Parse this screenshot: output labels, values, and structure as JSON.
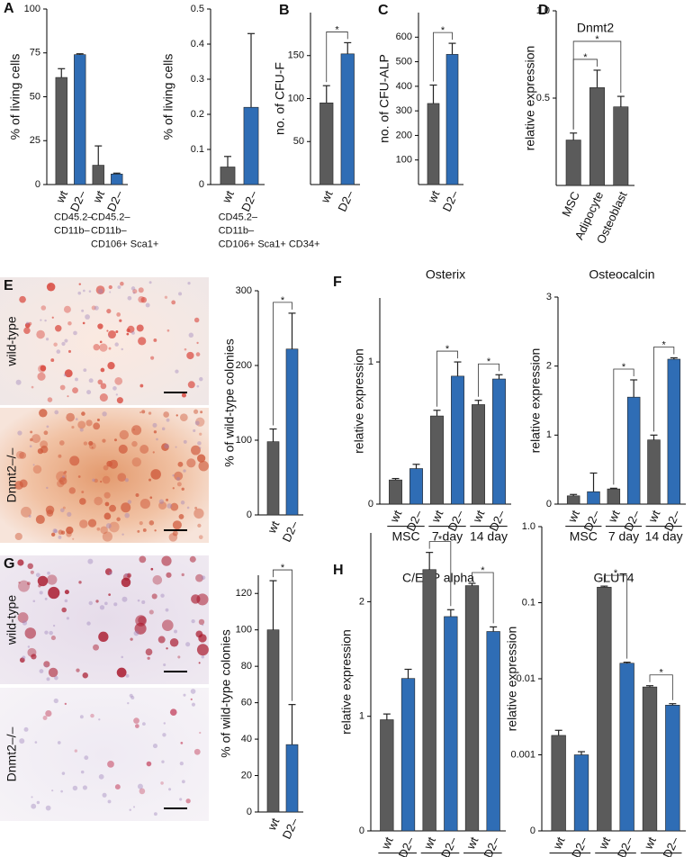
{
  "images": [
    {
      "panel": "E",
      "rows": [
        "wild-type",
        "Dnmt2–/–"
      ]
    },
    {
      "panel": "G",
      "rows": [
        "wild-type",
        "Dnmt2–/–"
      ]
    }
  ],
  "chart_data": [
    {
      "type": "bar",
      "panel": "A",
      "y_label": "% of living cells",
      "categories": [
        "wt",
        "D2–",
        "wt",
        "D2–"
      ],
      "values": [
        61,
        74,
        11,
        6
      ],
      "errors": [
        5,
        0.5,
        11,
        0.5
      ],
      "colors": [
        "#5b5b5b",
        "#2f6db5",
        "#5b5b5b",
        "#2f6db5"
      ],
      "groups": [
        [
          "CD45.2–",
          "CD11b–"
        ],
        [
          "CD45.2–",
          "CD11b–",
          "CD106+ Sca1+"
        ]
      ],
      "ylim": [
        0,
        100
      ],
      "yticks": [
        0,
        25,
        50,
        75,
        100
      ]
    },
    {
      "type": "bar",
      "y_label": "% of living cells",
      "categories": [
        "wt",
        "D2–"
      ],
      "values": [
        0.05,
        0.22
      ],
      "errors": [
        0.03,
        0.21
      ],
      "colors": [
        "#5b5b5b",
        "#2f6db5"
      ],
      "groups": [
        [
          "CD45.2–",
          "CD11b–",
          "CD106+ Sca1+ CD34+"
        ]
      ],
      "ylim": [
        0,
        0.5
      ],
      "yticks": [
        0,
        0.1,
        0.2,
        0.3,
        0.4,
        0.5
      ]
    },
    {
      "type": "bar",
      "panel": "B",
      "y_label": "no. of CFU-F",
      "categories": [
        "wt",
        "D2–"
      ],
      "values": [
        95,
        152
      ],
      "errors": [
        20,
        13
      ],
      "colors": [
        "#5b5b5b",
        "#2f6db5"
      ],
      "ylim": [
        0,
        200
      ],
      "yticks": [
        50,
        100,
        150
      ],
      "brackets": [
        {
          "from": 0,
          "to": 1,
          "label": "*"
        }
      ]
    },
    {
      "type": "bar",
      "panel": "C",
      "y_label": "no. of CFU-ALP",
      "categories": [
        "wt",
        "D2–"
      ],
      "values": [
        330,
        530
      ],
      "errors": [
        75,
        45
      ],
      "colors": [
        "#5b5b5b",
        "#2f6db5"
      ],
      "ylim": [
        0,
        700
      ],
      "yticks": [
        100,
        200,
        300,
        400,
        500,
        600
      ],
      "brackets": [
        {
          "from": 0,
          "to": 1,
          "label": "*"
        }
      ]
    },
    {
      "type": "bar",
      "panel": "D",
      "title": "Dnmt2",
      "y_label": "relative expression",
      "categories": [
        "MSC",
        "Adipocyte",
        "Osteoblast"
      ],
      "values": [
        0.26,
        0.56,
        0.45
      ],
      "errors": [
        0.04,
        0.1,
        0.06
      ],
      "colors": [
        "#5b5b5b",
        "#5b5b5b",
        "#5b5b5b"
      ],
      "ylim": [
        0,
        1
      ],
      "yticks": [
        0.5,
        {
          "value": 1,
          "label": "1.0"
        }
      ],
      "brackets": [
        {
          "from": 0,
          "to": 1,
          "label": "*"
        },
        {
          "from": 0,
          "to": 2,
          "label": "*"
        }
      ]
    },
    {
      "type": "bar",
      "y_label": "% of wild-type colonies",
      "categories": [
        "wt",
        "D2–"
      ],
      "values": [
        98,
        222
      ],
      "errors": [
        17,
        48
      ],
      "colors": [
        "#5b5b5b",
        "#2f6db5"
      ],
      "ylim": [
        0,
        300
      ],
      "yticks": [
        0,
        100,
        200,
        300
      ],
      "brackets": [
        {
          "from": 0,
          "to": 1,
          "label": "*"
        }
      ]
    },
    {
      "type": "bar",
      "panel": "F",
      "title": "Osterix",
      "y_label": "relative expression",
      "categories": [
        "wt",
        "D2–",
        "wt",
        "D2–",
        "wt",
        "D2–"
      ],
      "values": [
        0.17,
        0.25,
        0.62,
        0.9,
        0.7,
        0.88
      ],
      "errors": [
        0.01,
        0.03,
        0.04,
        0.1,
        0.03,
        0.03
      ],
      "colors": [
        "#5b5b5b",
        "#2f6db5",
        "#5b5b5b",
        "#2f6db5",
        "#5b5b5b",
        "#2f6db5"
      ],
      "groups": [
        [
          "MSC"
        ],
        [
          "7 day"
        ],
        [
          "14 day"
        ]
      ],
      "ylim": [
        0,
        1.45
      ],
      "yticks": [
        0,
        1
      ],
      "brackets": [
        {
          "from": 2,
          "to": 3,
          "label": "*"
        },
        {
          "from": 4,
          "to": 5,
          "label": "*"
        }
      ]
    },
    {
      "type": "bar",
      "title": "Osteocalcin",
      "y_label": "relative expression",
      "categories": [
        "wt",
        "D2–",
        "wt",
        "D2–",
        "wt",
        "D2–"
      ],
      "values": [
        0.12,
        0.18,
        0.22,
        1.55,
        0.93,
        2.1
      ],
      "errors": [
        0.02,
        0.27,
        0.01,
        0.25,
        0.07,
        0.02
      ],
      "colors": [
        "#5b5b5b",
        "#2f6db5",
        "#5b5b5b",
        "#2f6db5",
        "#5b5b5b",
        "#2f6db5"
      ],
      "groups": [
        [
          "MSC"
        ],
        [
          "7 day"
        ],
        [
          "14 day"
        ]
      ],
      "ylim": [
        0,
        3
      ],
      "yticks": [
        0,
        1,
        2,
        3
      ],
      "brackets": [
        {
          "from": 2,
          "to": 3,
          "label": "*"
        },
        {
          "from": 4,
          "to": 5,
          "label": "*"
        }
      ]
    },
    {
      "type": "bar",
      "y_label": "% of wild-type colonies",
      "categories": [
        "wt",
        "D2–"
      ],
      "values": [
        100,
        37
      ],
      "errors": [
        27,
        22
      ],
      "colors": [
        "#5b5b5b",
        "#2f6db5"
      ],
      "ylim": [
        0,
        130
      ],
      "yticks": [
        0,
        20,
        40,
        60,
        80,
        100,
        120
      ],
      "brackets": [
        {
          "from": 0,
          "to": 1,
          "label": "*"
        }
      ]
    },
    {
      "type": "bar",
      "panel": "H",
      "title": "C/EBP alpha",
      "y_label": "relative expression",
      "categories": [
        "wt",
        "D2–",
        "wt",
        "D2–",
        "wt",
        "D2–"
      ],
      "values": [
        0.97,
        1.33,
        2.28,
        1.87,
        2.14,
        1.74
      ],
      "errors": [
        0.05,
        0.08,
        0.15,
        0.06,
        0.02,
        0.04
      ],
      "colors": [
        "#5b5b5b",
        "#2f6db5",
        "#5b5b5b",
        "#2f6db5",
        "#5b5b5b",
        "#2f6db5"
      ],
      "groups": [
        [
          "MSC"
        ],
        [
          "7 day"
        ],
        [
          "14 day"
        ]
      ],
      "ylim": [
        0,
        2.6
      ],
      "yticks": [
        0,
        1,
        2
      ],
      "brackets": [
        {
          "from": 2,
          "to": 3,
          "label": "*"
        },
        {
          "from": 4,
          "to": 5,
          "label": "*"
        }
      ]
    },
    {
      "type": "bar",
      "title": "GLUT4",
      "y_label": "relative expression",
      "log": true,
      "categories": [
        "wt",
        "D2–",
        "wt",
        "D2–",
        "wt",
        "D2–"
      ],
      "values": [
        0.0018,
        0.001,
        0.16,
        0.016,
        0.0078,
        0.0045
      ],
      "errors": [
        0.0003,
        0.0001,
        0.005,
        0.0005,
        0.0003,
        0.0002
      ],
      "colors": [
        "#5b5b5b",
        "#2f6db5",
        "#5b5b5b",
        "#2f6db5",
        "#5b5b5b",
        "#2f6db5"
      ],
      "groups": [
        [
          "MSC"
        ],
        [
          "7 day"
        ],
        [
          "14 day"
        ]
      ],
      "ylim": [
        0.0001,
        1
      ],
      "yticks": [
        {
          "value": 0.0001,
          "label": "0"
        },
        0.001,
        0.01,
        0.1,
        {
          "value": 1,
          "label": "1.0"
        }
      ],
      "brackets": [
        {
          "from": 2,
          "to": 3,
          "label": "*"
        },
        {
          "from": 4,
          "to": 5,
          "label": "*"
        }
      ]
    }
  ]
}
